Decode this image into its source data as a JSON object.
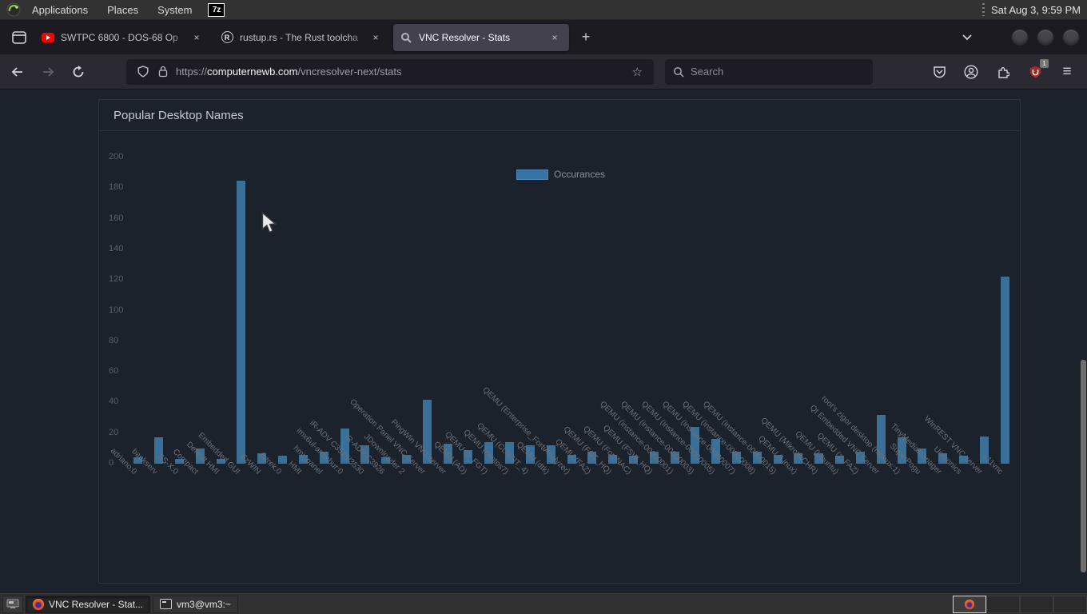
{
  "panel": {
    "menus": {
      "applications": "Applications",
      "places": "Places",
      "system": "System"
    },
    "launcher_label": "7z",
    "clock": "Sat Aug 3, 9:59 PM"
  },
  "browser": {
    "tabs": [
      {
        "title": "SWTPC 6800 - DOS-68 Op",
        "favicon": "youtube-icon",
        "active": false
      },
      {
        "title": "rustup.rs - The Rust toolcha",
        "favicon": "rust-icon",
        "active": false
      },
      {
        "title": "VNC Resolver - Stats",
        "favicon": "vnc-resolver-icon",
        "active": true
      }
    ],
    "rust_favicon_letter": "R",
    "close_glyph": "×",
    "new_tab_glyph": "+",
    "url": {
      "scheme": "https://",
      "domain": "computernewb.com",
      "path": "/vncresolver-next/stats"
    },
    "bookmark_star_glyph": "☆",
    "search": {
      "placeholder": "Search"
    },
    "ublock_badge": "1",
    "menu_glyph": "≡"
  },
  "page": {
    "card_title": "Popular Desktop Names"
  },
  "chart_data": {
    "type": "bar",
    "title": "Popular Desktop Names",
    "legend": [
      "Occurances"
    ],
    "legend_position": "top",
    "bar_color": "#3a7098",
    "grid": false,
    "ylim": [
      0,
      200
    ],
    "yticks": [
      0,
      20,
      40,
      60,
      80,
      100,
      120,
      140,
      160,
      180,
      200
    ],
    "categories": [
      "adriano:0",
      "bankserv",
      "SS-X:0",
      "Compact",
      "Default HMI",
      "Embedded GUI",
      "EzWIN",
      "futrek:0",
      "HMI",
      "hmi_panel",
      "imx6ul-armsbur:0",
      "iR-ADV C3525/3530",
      "iR-ADV C3926",
      "JDownloader 2",
      "Operation Panel VNC Server",
      "PingWin VNC-server",
      "QEMU (AD)",
      "QEMU (b_FGT)",
      "QEMU (centos7)",
      "QEMU (CLIENT_4)",
      "QEMU (dtk)",
      "QEMU (Enterprise_FortiAnalyzer)",
      "QEMU (FAZ)",
      "QEMU (FGT_HQ)",
      "QEMU (FortiNAC)",
      "QEMU (FSW_HQ)",
      "QEMU (instance-00000001)",
      "QEMU (instance-00000003)",
      "QEMU (instance-00000005)",
      "QEMU (instance-00000007)",
      "QEMU (instance-00000008)",
      "QEMU (instance-00000015)",
      "QEMU (Linux)",
      "QEMU (MikrotikCHR)",
      "QEMU (Ubuntu)",
      "QEMU (z_FAZ)",
      "Qt Embedded VNC Server",
      "root's zigor desktop (monux:1)",
      "SuperPogu",
      "TinyMediaManager",
      "Unitronics",
      "WinREST VNC server",
      "x11vnc"
    ],
    "values": [
      4,
      17,
      3,
      10,
      3,
      185,
      7,
      5,
      6,
      8,
      23,
      12,
      4,
      6,
      42,
      13,
      9,
      14,
      14,
      12,
      12,
      6,
      8,
      6,
      5,
      8,
      8,
      24,
      16,
      8,
      8,
      6,
      7,
      7,
      5,
      8,
      32,
      17,
      10,
      7,
      5,
      18,
      122
    ]
  },
  "taskbar": {
    "windows": [
      {
        "title": "VNC Resolver - Stat...",
        "icon": "firefox",
        "active": true
      },
      {
        "title": "vm3@vm3:~",
        "icon": "terminal",
        "active": false
      }
    ],
    "workspace_count": 4
  }
}
